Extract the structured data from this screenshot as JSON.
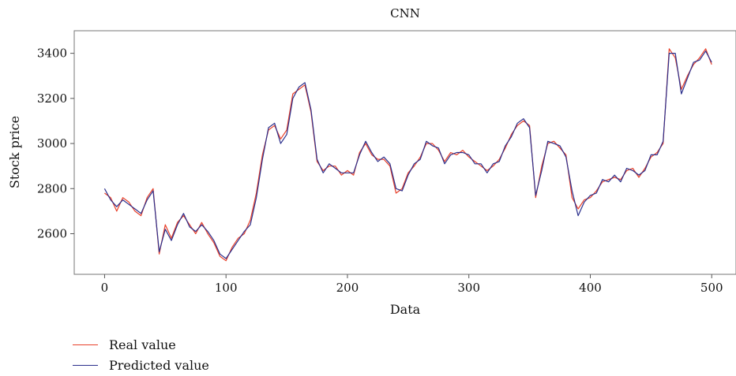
{
  "chart_data": {
    "type": "line",
    "title": "CNN",
    "xlabel": "Data",
    "ylabel": "Stock price",
    "xlim": [
      -25,
      520
    ],
    "ylim": [
      2420,
      3500
    ],
    "xticks": [
      0,
      100,
      200,
      300,
      400,
      500
    ],
    "yticks": [
      2600,
      2800,
      3000,
      3200,
      3400
    ],
    "grid": false,
    "legend_position": "bottom-left",
    "x": [
      0,
      5,
      10,
      15,
      20,
      25,
      30,
      35,
      40,
      45,
      50,
      55,
      60,
      65,
      70,
      75,
      80,
      85,
      90,
      95,
      100,
      105,
      110,
      115,
      120,
      125,
      130,
      135,
      140,
      145,
      150,
      155,
      160,
      165,
      170,
      175,
      180,
      185,
      190,
      195,
      200,
      205,
      210,
      215,
      220,
      225,
      230,
      235,
      240,
      245,
      250,
      255,
      260,
      265,
      270,
      275,
      280,
      285,
      290,
      295,
      300,
      305,
      310,
      315,
      320,
      325,
      330,
      335,
      340,
      345,
      350,
      355,
      360,
      365,
      370,
      375,
      380,
      385,
      390,
      395,
      400,
      405,
      410,
      415,
      420,
      425,
      430,
      435,
      440,
      445,
      450,
      455,
      460,
      465,
      470,
      475,
      480,
      485,
      490,
      495,
      500
    ],
    "series": [
      {
        "name": "Real value",
        "color": "#e8402a",
        "values": [
          2780,
          2760,
          2700,
          2760,
          2740,
          2700,
          2680,
          2760,
          2800,
          2510,
          2640,
          2580,
          2650,
          2680,
          2640,
          2600,
          2650,
          2600,
          2560,
          2500,
          2480,
          2540,
          2580,
          2600,
          2660,
          2780,
          2950,
          3060,
          3080,
          3020,
          3060,
          3220,
          3240,
          3260,
          3140,
          2920,
          2880,
          2900,
          2900,
          2860,
          2880,
          2860,
          2960,
          3000,
          2950,
          2930,
          2930,
          2900,
          2780,
          2800,
          2870,
          2900,
          2940,
          3000,
          3000,
          2970,
          2920,
          2960,
          2950,
          2970,
          2940,
          2920,
          2900,
          2880,
          2900,
          2930,
          2980,
          3040,
          3080,
          3100,
          3080,
          2760,
          2900,
          3000,
          3010,
          2980,
          2950,
          2760,
          2710,
          2750,
          2760,
          2790,
          2830,
          2840,
          2850,
          2840,
          2880,
          2890,
          2850,
          2890,
          2940,
          2960,
          3000,
          3420,
          3380,
          3240,
          3300,
          3350,
          3380,
          3420,
          3350
        ]
      },
      {
        "name": "Predicted value",
        "color": "#2b2f8c",
        "values": [
          2800,
          2750,
          2720,
          2750,
          2730,
          2710,
          2690,
          2750,
          2790,
          2520,
          2620,
          2570,
          2640,
          2690,
          2630,
          2610,
          2640,
          2610,
          2570,
          2510,
          2490,
          2530,
          2570,
          2610,
          2640,
          2760,
          2930,
          3070,
          3090,
          3000,
          3040,
          3200,
          3250,
          3270,
          3150,
          2930,
          2870,
          2910,
          2890,
          2870,
          2870,
          2870,
          2950,
          3010,
          2960,
          2920,
          2940,
          2910,
          2800,
          2790,
          2860,
          2910,
          2930,
          3010,
          2990,
          2980,
          2910,
          2950,
          2960,
          2960,
          2950,
          2910,
          2910,
          2870,
          2910,
          2920,
          2990,
          3030,
          3090,
          3110,
          3070,
          2770,
          2880,
          3010,
          3000,
          2990,
          2940,
          2790,
          2680,
          2740,
          2770,
          2780,
          2840,
          2830,
          2860,
          2830,
          2890,
          2880,
          2860,
          2880,
          2950,
          2950,
          3010,
          3400,
          3400,
          3220,
          3290,
          3360,
          3370,
          3410,
          3360
        ]
      }
    ]
  }
}
